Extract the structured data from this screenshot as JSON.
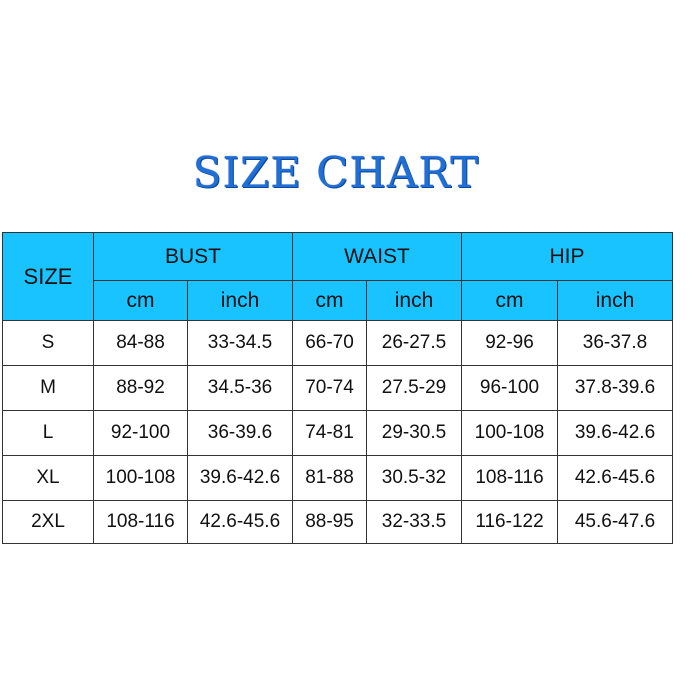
{
  "title": "SIZE CHART",
  "header": {
    "size": "SIZE",
    "groups": [
      "BUST",
      "WAIST",
      "HIP"
    ],
    "units": [
      "cm",
      "inch",
      "cm",
      "inch",
      "cm",
      "inch"
    ]
  },
  "rows": [
    [
      "S",
      "84-88",
      "33-34.5",
      "66-70",
      "26-27.5",
      "92-96",
      "36-37.8"
    ],
    [
      "M",
      "88-92",
      "34.5-36",
      "70-74",
      "27.5-29",
      "96-100",
      "37.8-39.6"
    ],
    [
      "L",
      "92-100",
      "36-39.6",
      "74-81",
      "29-30.5",
      "100-108",
      "39.6-42.6"
    ],
    [
      "XL",
      "100-108",
      "39.6-42.6",
      "81-88",
      "30.5-32",
      "108-116",
      "42.6-45.6"
    ],
    [
      "2XL",
      "108-116",
      "42.6-45.6",
      "88-95",
      "32-33.5",
      "116-122",
      "45.6-47.6"
    ]
  ],
  "colors": {
    "header_bg": "#19c3ff",
    "title": "#1f6fd6"
  }
}
